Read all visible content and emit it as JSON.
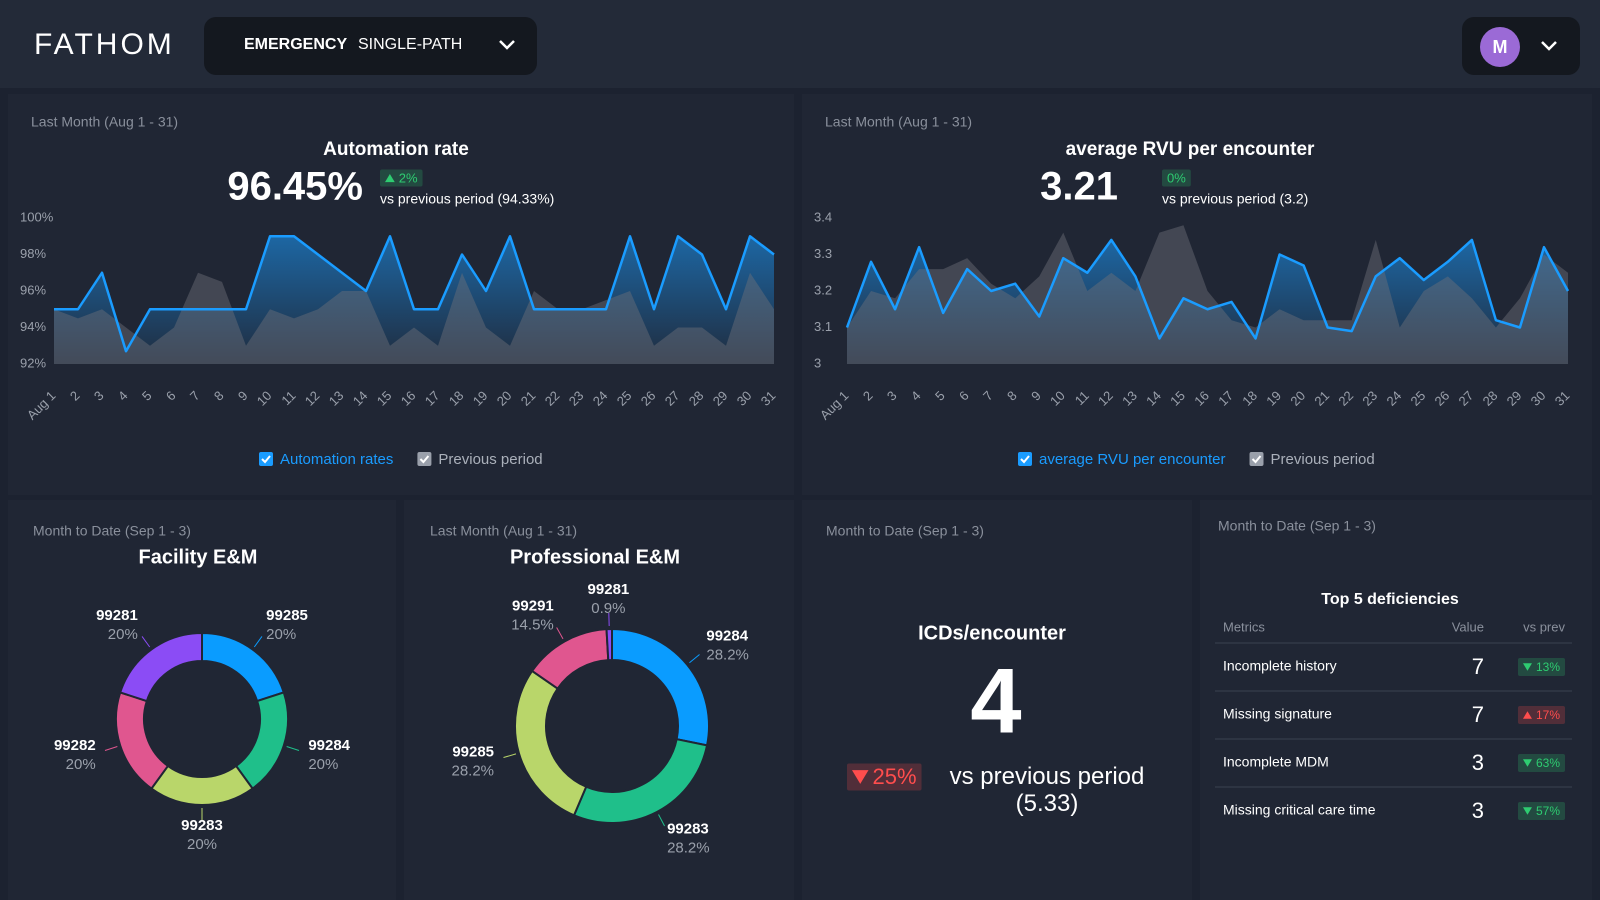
{
  "header": {
    "logo": "FATHOM",
    "specialty": "EMERGENCY",
    "mode": "SINGLE-PATH",
    "avatar": "M"
  },
  "chart_data": [
    {
      "type": "line",
      "period": "Last Month (Aug 1 - 31)",
      "title": "Automation rate",
      "kpi": {
        "value": "96.45%",
        "change": "2%",
        "direction": "up",
        "color": "#2ecc71",
        "comparison": "vs previous period (94.33%)"
      },
      "categories": [
        "Aug 1",
        "2",
        "3",
        "4",
        "5",
        "6",
        "7",
        "8",
        "9",
        "10",
        "11",
        "12",
        "13",
        "14",
        "15",
        "16",
        "17",
        "18",
        "19",
        "20",
        "21",
        "22",
        "23",
        "24",
        "25",
        "26",
        "27",
        "28",
        "29",
        "30",
        "31"
      ],
      "series": [
        {
          "name": "Automation rates",
          "color": "#1a9cff",
          "style": "line",
          "values": [
            95,
            95,
            97,
            92.7,
            95,
            95,
            95,
            95,
            95,
            99,
            99,
            98,
            97,
            96,
            99,
            95,
            95,
            98,
            96,
            99,
            95,
            95,
            95,
            95,
            99,
            95,
            99,
            98,
            95,
            99,
            98
          ]
        },
        {
          "name": "Previous period",
          "color": "#6e727b",
          "style": "area",
          "values": [
            95,
            94.5,
            95,
            94,
            93,
            94,
            97,
            96.5,
            93,
            95,
            94.5,
            95,
            96,
            96,
            93,
            94,
            93,
            97,
            94,
            93,
            96,
            95,
            95,
            95.5,
            96,
            93,
            94,
            94,
            93,
            97,
            95
          ]
        }
      ],
      "ylim": [
        92,
        100
      ],
      "yticks": [
        {
          "value": 92,
          "label": "92%"
        },
        {
          "value": 94,
          "label": "94%"
        },
        {
          "value": 96,
          "label": "96%"
        },
        {
          "value": 98,
          "label": "98%"
        },
        {
          "value": 100,
          "label": "100%"
        }
      ],
      "grid": false,
      "legend": "bottom"
    },
    {
      "type": "line",
      "period": "Last Month (Aug 1 - 31)",
      "title": "average RVU per encounter",
      "kpi": {
        "value": "3.21",
        "change": "0%",
        "direction": "none",
        "color": "#2ecc71",
        "comparison": "vs previous period (3.2)"
      },
      "categories": [
        "Aug 1",
        "2",
        "3",
        "4",
        "5",
        "6",
        "7",
        "8",
        "9",
        "10",
        "11",
        "12",
        "13",
        "14",
        "15",
        "16",
        "17",
        "18",
        "19",
        "20",
        "21",
        "22",
        "23",
        "24",
        "25",
        "26",
        "27",
        "28",
        "29",
        "30",
        "31"
      ],
      "series": [
        {
          "name": "average RVU per encounter",
          "color": "#1a9cff",
          "style": "line",
          "values": [
            3.1,
            3.28,
            3.15,
            3.32,
            3.14,
            3.26,
            3.2,
            3.22,
            3.13,
            3.29,
            3.25,
            3.34,
            3.24,
            3.07,
            3.18,
            3.15,
            3.17,
            3.07,
            3.3,
            3.27,
            3.1,
            3.09,
            3.24,
            3.29,
            3.23,
            3.28,
            3.34,
            3.12,
            3.1,
            3.32,
            3.2
          ]
        },
        {
          "name": "Previous period",
          "color": "#6e727b",
          "style": "area",
          "values": [
            3.1,
            3.2,
            3.18,
            3.26,
            3.26,
            3.29,
            3.22,
            3.18,
            3.24,
            3.36,
            3.2,
            3.25,
            3.2,
            3.36,
            3.38,
            3.2,
            3.12,
            3.1,
            3.15,
            3.12,
            3.12,
            3.12,
            3.34,
            3.1,
            3.2,
            3.24,
            3.18,
            3.1,
            3.18,
            3.3,
            3.25
          ]
        }
      ],
      "ylim": [
        3,
        3.4
      ],
      "yticks": [
        3,
        3.1,
        3.2,
        3.3,
        3.4
      ],
      "grid": false,
      "legend": "bottom"
    },
    {
      "type": "pie",
      "donut": true,
      "period": "Month to Date (Sep 1 - 3)",
      "title": "Facility E&M",
      "categories": [
        "99285",
        "99284",
        "99283",
        "99282",
        "99281"
      ],
      "values": [
        20,
        20,
        20,
        20,
        20
      ],
      "value_labels": [
        "20%",
        "20%",
        "20%",
        "20%",
        "20%"
      ],
      "colors": [
        "#0a9cff",
        "#1fbf8a",
        "#b9d66a",
        "#e0568f",
        "#8b4cf5"
      ]
    },
    {
      "type": "pie",
      "donut": true,
      "period": "Last Month (Aug 1 - 31)",
      "title": "Professional E&M",
      "categories": [
        "99284",
        "99283",
        "99285",
        "99291",
        "99281"
      ],
      "values": [
        28.2,
        28.2,
        28.2,
        14.5,
        0.9
      ],
      "value_labels": [
        "28.2%",
        "28.2%",
        "28.2%",
        "14.5%",
        "0.9%"
      ],
      "colors": [
        "#0a9cff",
        "#1fbf8a",
        "#b9d66a",
        "#e0568f",
        "#8b4cf5"
      ]
    }
  ],
  "icd_panel": {
    "period": "Month to Date (Sep 1 - 3)",
    "title": "ICDs/encounter",
    "value": 4,
    "change": "25%",
    "direction": "down",
    "color": "#ff4d4d",
    "comparison": "vs previous period (5.33)"
  },
  "table": {
    "period": "Month to Date (Sep 1 - 3)",
    "title": "Top 5 deficiencies",
    "columns": [
      "Metrics",
      "Value",
      "vs prev"
    ],
    "rows": [
      {
        "metric": "Incomplete history",
        "value": 7,
        "change": "13%",
        "direction": "down",
        "color": "#2ecc71"
      },
      {
        "metric": "Missing signature",
        "value": 7,
        "change": "17%",
        "direction": "up",
        "color": "#ff4d4d"
      },
      {
        "metric": "Incomplete MDM",
        "value": 3,
        "change": "63%",
        "direction": "down",
        "color": "#2ecc71"
      },
      {
        "metric": "Missing critical care time",
        "value": 3,
        "change": "57%",
        "direction": "down",
        "color": "#2ecc71"
      }
    ]
  }
}
